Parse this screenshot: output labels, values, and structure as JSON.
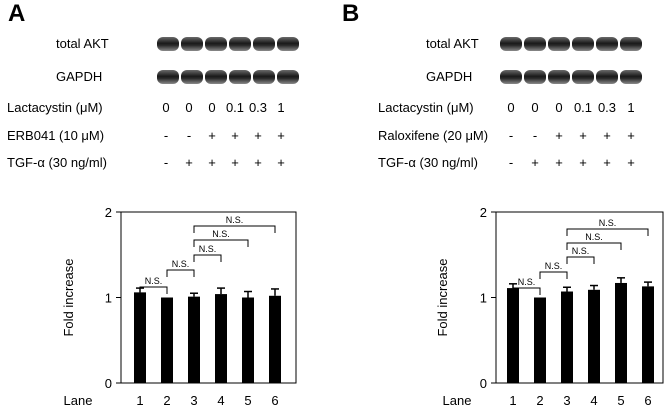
{
  "panels": [
    {
      "letter": "A",
      "blots": [
        {
          "label": "total AKT",
          "lanes": 6
        },
        {
          "label": "GAPDH",
          "lanes": 6
        }
      ],
      "conditions": [
        {
          "label": "Lactacystin (μM)",
          "values": [
            "0",
            "0",
            "0",
            "0.1",
            "0.3",
            "1"
          ]
        },
        {
          "label": "ERB041 (10 μM)",
          "values": [
            "-",
            "-",
            "+",
            "+",
            "+",
            "+"
          ]
        },
        {
          "label": "TGF-α (30 ng/ml)",
          "values": [
            "-",
            "+",
            "+",
            "+",
            "+",
            "+"
          ]
        }
      ]
    },
    {
      "letter": "B",
      "blots": [
        {
          "label": "total AKT",
          "lanes": 6
        },
        {
          "label": "GAPDH",
          "lanes": 6
        }
      ],
      "conditions": [
        {
          "label": "Lactacystin (μM)",
          "values": [
            "0",
            "0",
            "0",
            "0.1",
            "0.3",
            "1"
          ]
        },
        {
          "label": "Raloxifene (20 μM)",
          "values": [
            "-",
            "-",
            "+",
            "+",
            "+",
            "+"
          ]
        },
        {
          "label": "TGF-α (30 ng/ml)",
          "values": [
            "-",
            "+",
            "+",
            "+",
            "+",
            "+"
          ]
        }
      ]
    }
  ],
  "chart_data": [
    {
      "type": "bar",
      "panel": "A",
      "categories": [
        "1",
        "2",
        "3",
        "4",
        "5",
        "6"
      ],
      "values": [
        1.06,
        1.0,
        1.01,
        1.04,
        1.0,
        1.02
      ],
      "errors": [
        0.05,
        0.0,
        0.04,
        0.07,
        0.07,
        0.08
      ],
      "ylabel": "Fold increase",
      "xlabel": "Lane",
      "ylim": [
        0,
        2
      ],
      "yticks": [
        "0",
        "1",
        "2"
      ],
      "bar_color": "#000000",
      "significance": [
        {
          "from": 1,
          "to": 2,
          "label": "N.S."
        },
        {
          "from": 2,
          "to": 3,
          "label": "N.S."
        },
        {
          "from": 3,
          "to": 4,
          "label": "N.S."
        },
        {
          "from": 3,
          "to": 5,
          "label": "N.S."
        },
        {
          "from": 3,
          "to": 6,
          "label": "N.S."
        }
      ]
    },
    {
      "type": "bar",
      "panel": "B",
      "categories": [
        "1",
        "2",
        "3",
        "4",
        "5",
        "6"
      ],
      "values": [
        1.11,
        1.0,
        1.07,
        1.09,
        1.17,
        1.13
      ],
      "errors": [
        0.05,
        0.0,
        0.05,
        0.05,
        0.06,
        0.05
      ],
      "ylabel": "Fold increase",
      "xlabel": "Lane",
      "ylim": [
        0,
        2
      ],
      "yticks": [
        "0",
        "1",
        "2"
      ],
      "bar_color": "#000000",
      "significance": [
        {
          "from": 1,
          "to": 2,
          "label": "N.S."
        },
        {
          "from": 2,
          "to": 3,
          "label": "N.S."
        },
        {
          "from": 3,
          "to": 4,
          "label": "N.S."
        },
        {
          "from": 3,
          "to": 5,
          "label": "N.S."
        },
        {
          "from": 3,
          "to": 6,
          "label": "N.S."
        }
      ]
    }
  ]
}
